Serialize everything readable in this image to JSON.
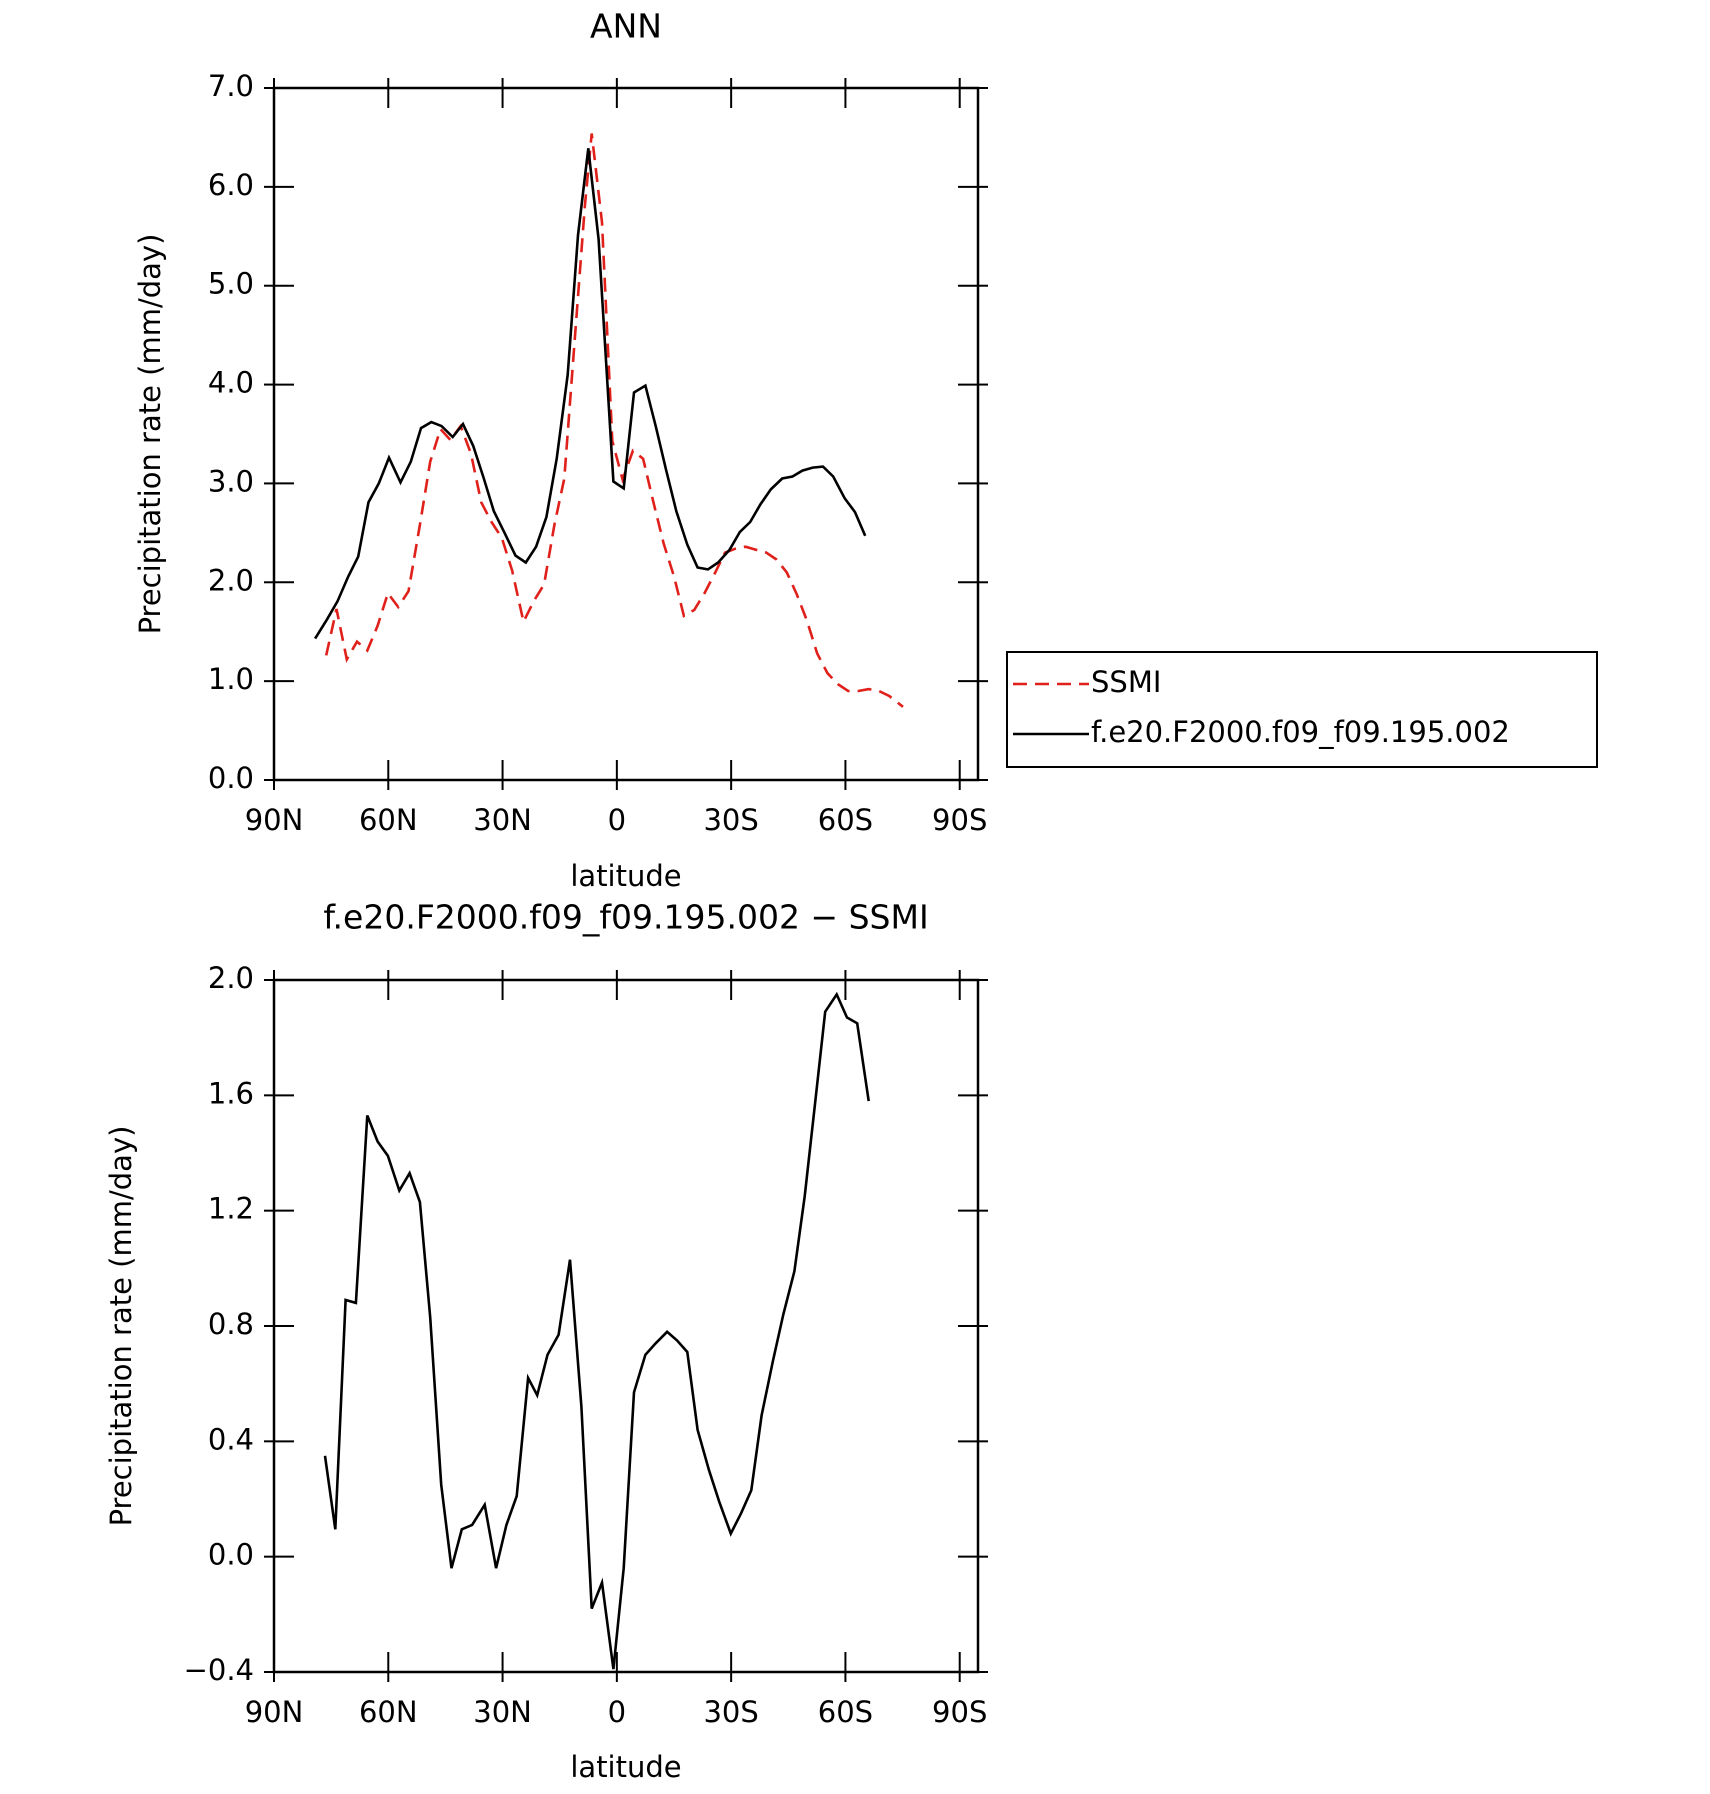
{
  "chart_data": [
    {
      "type": "line",
      "title": "ANN",
      "xlabel": "latitude",
      "ylabel": "Precipitation rate (mm/day)",
      "xlim": [
        90,
        -94.8
      ],
      "xticks": [
        {
          "value": 90,
          "label": "90N"
        },
        {
          "value": 60,
          "label": "60N"
        },
        {
          "value": 30,
          "label": "30N"
        },
        0,
        {
          "value": -30,
          "label": "30S"
        },
        {
          "value": -60,
          "label": "60S"
        },
        {
          "value": -90,
          "label": "90S"
        }
      ],
      "ylim": [
        0,
        7
      ],
      "yticks": [
        {
          "value": 0,
          "label": "0.0"
        },
        {
          "value": 1,
          "label": "1.0"
        },
        {
          "value": 2,
          "label": "2.0"
        },
        {
          "value": 3,
          "label": "3.0"
        },
        {
          "value": 4,
          "label": "4.0"
        },
        {
          "value": 5,
          "label": "5.0"
        },
        {
          "value": 6,
          "label": "6.0"
        },
        {
          "value": 7,
          "label": "7.0"
        }
      ],
      "legend": "right",
      "series": [
        {
          "name": "SSMI",
          "color": "#e0201a",
          "style": "dashed",
          "x": [
            76.3,
            73.6,
            70.9,
            68.2,
            65.5,
            62.8,
            60.1,
            57.4,
            54.7,
            51.7,
            49,
            46.3,
            43.7,
            41,
            38.3,
            35.6,
            32.9,
            30.2,
            27.5,
            24.5,
            21.8,
            19.1,
            16.4,
            13.8,
            11,
            8.4,
            6.6,
            3.9,
            1.2,
            -1.5,
            -4.2,
            -6.9,
            -9.6,
            -12.3,
            -15,
            -17.6,
            -20.3,
            -23,
            -25.7,
            -28.4,
            -31.1,
            -33.8,
            -36.5,
            -39.2,
            -41.9,
            -44.6,
            -47.2,
            -49.9,
            -52.6,
            -55.3,
            -58,
            -60.7,
            -63.4,
            -66.1,
            -68.8,
            -71.5,
            -75.1
          ],
          "values": [
            1.26,
            1.73,
            1.22,
            1.4,
            1.31,
            1.56,
            1.89,
            1.75,
            1.91,
            2.58,
            3.22,
            3.55,
            3.44,
            3.58,
            3.3,
            2.81,
            2.61,
            2.45,
            2.12,
            1.6,
            1.81,
            1.98,
            2.58,
            3.05,
            4.49,
            5.81,
            6.54,
            5.64,
            3.43,
            3.04,
            3.33,
            3.25,
            2.81,
            2.39,
            2.06,
            1.66,
            1.72,
            1.89,
            2.09,
            2.3,
            2.34,
            2.36,
            2.33,
            2.3,
            2.23,
            2.1,
            1.88,
            1.61,
            1.28,
            1.08,
            0.97,
            0.9,
            0.9,
            0.92,
            0.9,
            0.85,
            0.74
          ]
        },
        {
          "name": "f.e20.F2000.f09_f09.195.002",
          "color": "#000000",
          "style": "solid",
          "x": [
            79.2,
            76,
            73.3,
            70.5,
            67.9,
            65.2,
            62.5,
            59.8,
            56.8,
            54.1,
            51.4,
            48.7,
            46,
            43.1,
            40.4,
            37.7,
            35,
            32.3,
            29.6,
            26.6,
            23.9,
            21.2,
            18.5,
            15.8,
            12.9,
            10.2,
            7.5,
            4.8,
            0.9,
            -1.8,
            -4.5,
            -7.5,
            -10.2,
            -12.9,
            -15.6,
            -18.5,
            -21.2,
            -23.9,
            -26.6,
            -29.6,
            -32.3,
            -35,
            -37.7,
            -40.4,
            -43.4,
            -46.1,
            -48.7,
            -51.4,
            -54.1,
            -56.8,
            -59.8,
            -62.5,
            -65.2
          ],
          "values": [
            1.43,
            1.63,
            1.81,
            2.06,
            2.26,
            2.81,
            3.0,
            3.26,
            3.01,
            3.22,
            3.56,
            3.62,
            3.58,
            3.47,
            3.6,
            3.38,
            3.06,
            2.72,
            2.51,
            2.27,
            2.2,
            2.36,
            2.66,
            3.25,
            4.1,
            5.51,
            6.39,
            5.47,
            3.02,
            2.95,
            3.92,
            3.99,
            3.58,
            3.14,
            2.72,
            2.38,
            2.15,
            2.13,
            2.2,
            2.33,
            2.51,
            2.61,
            2.79,
            2.94,
            3.05,
            3.07,
            3.13,
            3.16,
            3.17,
            3.07,
            2.85,
            2.71,
            2.47
          ]
        }
      ]
    },
    {
      "type": "line",
      "title": "f.e20.F2000.f09_f09.195.002 − SSMI",
      "xlabel": "latitude",
      "ylabel": "Precipitation rate (mm/day)",
      "xlim": [
        90,
        -94.8
      ],
      "xticks": [
        {
          "value": 90,
          "label": "90N"
        },
        {
          "value": 60,
          "label": "60N"
        },
        {
          "value": 30,
          "label": "30N"
        },
        0,
        {
          "value": -30,
          "label": "30S"
        },
        {
          "value": -60,
          "label": "60S"
        },
        {
          "value": -90,
          "label": "90S"
        }
      ],
      "ylim": [
        -0.4,
        2.0
      ],
      "yticks": [
        {
          "value": -0.4,
          "label": "−0.4"
        },
        {
          "value": 0,
          "label": "0.0"
        },
        0.4,
        0.8,
        1.2,
        1.6,
        {
          "value": 2.0,
          "label": "2.0"
        }
      ],
      "series": [
        {
          "color": "#000000",
          "style": "solid",
          "x": [
            76.6,
            73.9,
            71.2,
            68.5,
            65.5,
            62.8,
            60.1,
            57.1,
            54.4,
            51.7,
            49,
            46.1,
            43.4,
            40.7,
            38,
            34.7,
            31.7,
            29,
            26.3,
            23.3,
            20.9,
            18.2,
            15.3,
            12.3,
            9.3,
            6.6,
            3.9,
            0.9,
            -1.8,
            -4.5,
            -7.5,
            -10.2,
            -13.2,
            -15.8,
            -18.5,
            -21.2,
            -24.2,
            -26.9,
            -29.9,
            -32.6,
            -35.3,
            -38,
            -41,
            -43.7,
            -46.6,
            -49.3,
            -52,
            -54.7,
            -57.7,
            -60.4,
            -63.1,
            -66.1
          ],
          "values": [
            0.35,
            0.095,
            0.89,
            0.88,
            1.53,
            1.44,
            1.39,
            1.27,
            1.33,
            1.23,
            0.83,
            0.25,
            -0.04,
            0.095,
            0.11,
            0.18,
            -0.04,
            0.11,
            0.21,
            0.62,
            0.56,
            0.7,
            0.77,
            1.03,
            0.52,
            -0.18,
            -0.09,
            -0.39,
            -0.04,
            0.57,
            0.7,
            0.74,
            0.78,
            0.75,
            0.71,
            0.44,
            0.3,
            0.19,
            0.08,
            0.15,
            0.23,
            0.49,
            0.68,
            0.84,
            0.99,
            1.25,
            1.57,
            1.89,
            1.95,
            1.87,
            1.85,
            1.58
          ]
        }
      ]
    }
  ]
}
